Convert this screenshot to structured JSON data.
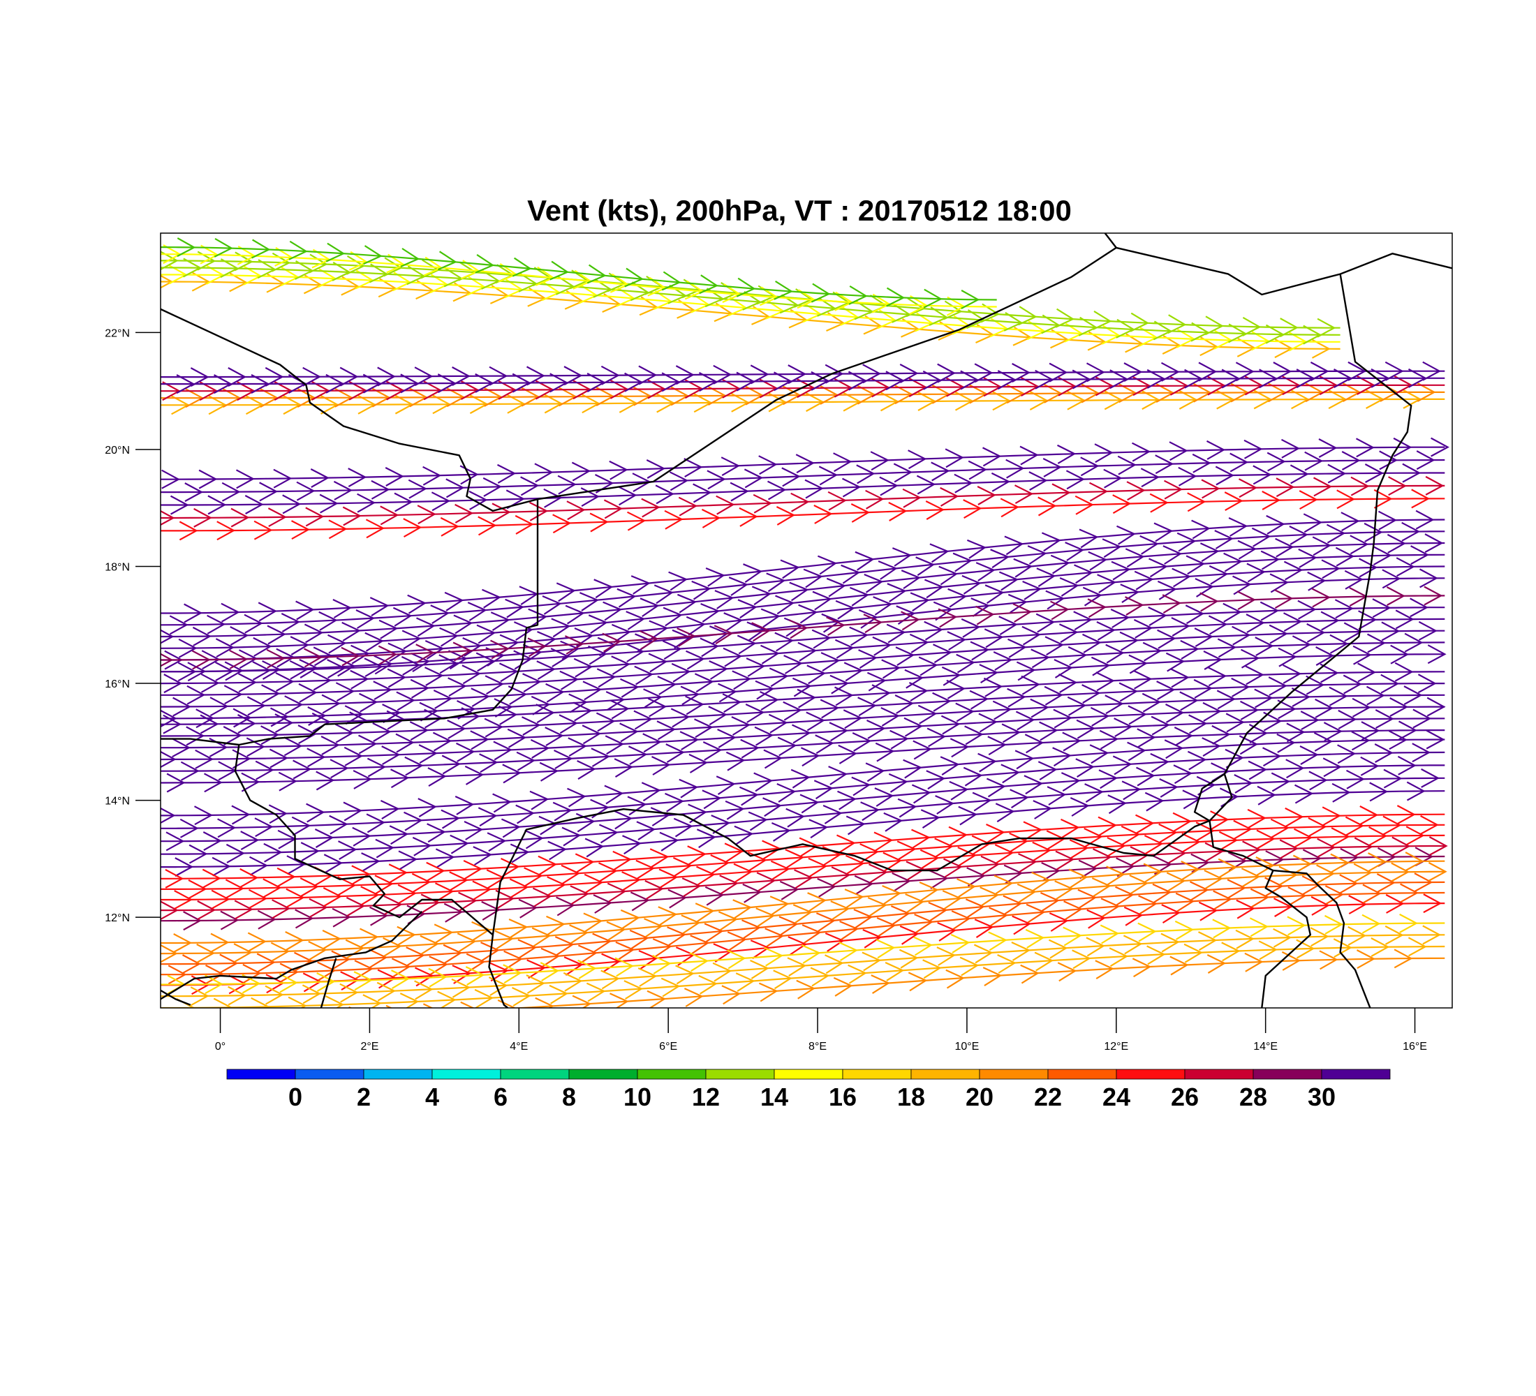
{
  "title": "Vent (kts), 200hPa, VT : 20170512  18:00",
  "map": {
    "lon_range": [
      -0.8,
      16.5
    ],
    "lat_range": [
      10.45,
      23.7
    ],
    "lon_ticks": [
      {
        "lon": 0,
        "label": "0°"
      },
      {
        "lon": 2,
        "label": "2°E"
      },
      {
        "lon": 4,
        "label": "4°E"
      },
      {
        "lon": 6,
        "label": "6°E"
      },
      {
        "lon": 8,
        "label": "8°E"
      },
      {
        "lon": 10,
        "label": "10°E"
      },
      {
        "lon": 12,
        "label": "12°E"
      },
      {
        "lon": 14,
        "label": "14°E"
      },
      {
        "lon": 16,
        "label": "16°E"
      }
    ],
    "lat_ticks": [
      {
        "lat": 22,
        "label": "22°N"
      },
      {
        "lat": 20,
        "label": "20°N"
      },
      {
        "lat": 18,
        "label": "18°N"
      },
      {
        "lat": 16,
        "label": "16°N"
      },
      {
        "lat": 14,
        "label": "14°N"
      },
      {
        "lat": 12,
        "label": "12°N"
      }
    ],
    "streamline_bands": [
      {
        "lat_start": 23.05,
        "lat_end": 21.9,
        "lon_end": 15.0,
        "count": 4,
        "spacing": 0.12,
        "speeds": [
          19,
          15,
          12,
          13
        ]
      },
      {
        "lat_start": 23.4,
        "lat_end": 22.5,
        "lon_end": 10.5,
        "count": 2,
        "spacing": 0.12,
        "speeds": [
          14,
          10
        ]
      },
      {
        "lat_start": 21.0,
        "lat_end": 21.1,
        "lon_end": 16.5,
        "count": 5,
        "spacing": 0.12,
        "speeds": [
          19,
          20,
          26,
          31,
          31
        ]
      },
      {
        "lat_start": 19.05,
        "lat_end": 19.6,
        "lon_end": 16.5,
        "count": 5,
        "spacing": 0.22,
        "speeds": [
          25,
          26,
          31,
          31,
          31
        ]
      },
      {
        "lat_start": 16.7,
        "lat_end": 18.3,
        "lon_end": 16.5,
        "count": 6,
        "spacing": 0.2,
        "speeds": [
          31,
          31,
          31,
          31,
          31,
          31
        ]
      },
      {
        "lat_start": 15.9,
        "lat_end": 17.0,
        "lon_end": 16.5,
        "count": 6,
        "spacing": 0.2,
        "speeds": [
          31,
          31,
          31,
          31,
          31,
          29
        ]
      },
      {
        "lat_start": 14.8,
        "lat_end": 15.7,
        "lon_end": 16.5,
        "count": 6,
        "spacing": 0.2,
        "speeds": [
          31,
          31,
          31,
          31,
          31,
          31
        ]
      },
      {
        "lat_start": 13.3,
        "lat_end": 14.6,
        "lon_end": 16.5,
        "count": 5,
        "spacing": 0.22,
        "speeds": [
          31,
          31,
          31,
          31,
          31
        ]
      },
      {
        "lat_start": 12.3,
        "lat_end": 13.4,
        "lon_end": 16.5,
        "count": 5,
        "spacing": 0.18,
        "speeds": [
          28,
          26,
          25,
          24,
          25
        ]
      },
      {
        "lat_start": 11.2,
        "lat_end": 12.6,
        "lon_end": 16.5,
        "count": 5,
        "spacing": 0.18,
        "speeds": [
          24,
          23,
          22,
          21,
          20
        ]
      },
      {
        "lat_start": 10.55,
        "lat_end": 11.6,
        "lon_end": 16.5,
        "count": 4,
        "spacing": 0.2,
        "speeds": [
          20,
          19,
          18,
          17
        ]
      }
    ],
    "boundaries": [
      [
        [
          -0.8,
          22.4
        ],
        [
          0.8,
          21.45
        ],
        [
          1.15,
          21.1
        ],
        [
          1.2,
          20.8
        ],
        [
          1.65,
          20.4
        ],
        [
          2.4,
          20.1
        ],
        [
          3.2,
          19.9
        ],
        [
          3.35,
          19.5
        ],
        [
          3.3,
          19.2
        ],
        [
          3.65,
          18.95
        ],
        [
          4.25,
          19.15
        ],
        [
          5.8,
          19.45
        ],
        [
          7.45,
          20.85
        ],
        [
          8.2,
          21.3
        ],
        [
          9.9,
          22.05
        ],
        [
          11.4,
          22.95
        ],
        [
          12.0,
          23.45
        ],
        [
          11.85,
          23.7
        ]
      ],
      [
        [
          12.0,
          23.45
        ],
        [
          13.5,
          23.0
        ],
        [
          13.95,
          22.65
        ],
        [
          15.0,
          23.0
        ],
        [
          15.7,
          23.35
        ],
        [
          16.5,
          23.1
        ]
      ],
      [
        [
          15.0,
          23.0
        ],
        [
          15.2,
          21.5
        ],
        [
          15.95,
          20.75
        ],
        [
          15.9,
          20.3
        ],
        [
          15.7,
          19.9
        ],
        [
          15.5,
          19.3
        ],
        [
          15.45,
          18.4
        ],
        [
          15.4,
          17.9
        ],
        [
          15.25,
          16.8
        ],
        [
          14.35,
          15.85
        ],
        [
          13.75,
          15.15
        ],
        [
          13.45,
          14.45
        ],
        [
          13.55,
          14.05
        ],
        [
          13.25,
          13.65
        ],
        [
          13.3,
          13.2
        ],
        [
          13.7,
          13.05
        ],
        [
          14.1,
          12.8
        ],
        [
          14.0,
          12.5
        ],
        [
          14.2,
          12.35
        ],
        [
          14.55,
          12.0
        ],
        [
          14.6,
          11.7
        ],
        [
          14.3,
          11.35
        ],
        [
          14.0,
          11.0
        ],
        [
          13.95,
          10.45
        ]
      ],
      [
        [
          13.45,
          14.45
        ],
        [
          13.15,
          14.2
        ],
        [
          13.05,
          13.8
        ],
        [
          13.25,
          13.65
        ]
      ],
      [
        [
          14.1,
          12.8
        ],
        [
          14.55,
          12.75
        ],
        [
          14.7,
          12.55
        ],
        [
          14.95,
          12.25
        ],
        [
          15.05,
          11.9
        ],
        [
          15.0,
          11.4
        ],
        [
          15.2,
          11.1
        ],
        [
          15.4,
          10.45
        ]
      ],
      [
        [
          4.25,
          19.15
        ],
        [
          4.25,
          17.0
        ],
        [
          4.1,
          16.95
        ],
        [
          4.05,
          16.4
        ],
        [
          3.9,
          15.9
        ],
        [
          3.65,
          15.55
        ],
        [
          3.0,
          15.4
        ],
        [
          1.4,
          15.3
        ],
        [
          1.2,
          15.1
        ],
        [
          0.65,
          15.05
        ],
        [
          0.25,
          14.95
        ],
        [
          -0.4,
          15.05
        ],
        [
          -0.8,
          15.05
        ]
      ],
      [
        [
          0.25,
          14.95
        ],
        [
          0.2,
          14.5
        ],
        [
          0.4,
          14.0
        ],
        [
          0.75,
          13.75
        ],
        [
          1.0,
          13.4
        ],
        [
          1.0,
          13.0
        ],
        [
          1.6,
          12.65
        ],
        [
          2.0,
          12.7
        ],
        [
          2.2,
          12.4
        ],
        [
          2.05,
          12.2
        ],
        [
          2.4,
          12.0
        ],
        [
          2.7,
          12.3
        ],
        [
          3.1,
          12.3
        ],
        [
          3.65,
          11.7
        ],
        [
          3.6,
          11.15
        ],
        [
          3.8,
          10.5
        ],
        [
          3.85,
          10.45
        ]
      ],
      [
        [
          3.65,
          11.7
        ],
        [
          3.75,
          12.6
        ],
        [
          4.1,
          13.5
        ],
        [
          4.8,
          13.7
        ],
        [
          5.4,
          13.85
        ],
        [
          6.2,
          13.75
        ],
        [
          6.8,
          13.35
        ],
        [
          7.1,
          13.05
        ],
        [
          7.8,
          13.25
        ],
        [
          8.5,
          13.05
        ],
        [
          9.0,
          12.8
        ],
        [
          9.6,
          12.8
        ],
        [
          10.2,
          13.25
        ],
        [
          10.7,
          13.35
        ],
        [
          11.4,
          13.35
        ],
        [
          12.1,
          13.1
        ],
        [
          12.5,
          13.05
        ],
        [
          13.05,
          13.55
        ],
        [
          13.25,
          13.65
        ]
      ],
      [
        [
          -0.8,
          10.6
        ],
        [
          -0.35,
          10.95
        ],
        [
          0.0,
          11.0
        ],
        [
          0.75,
          10.95
        ],
        [
          0.95,
          11.1
        ],
        [
          1.4,
          11.3
        ],
        [
          1.95,
          11.4
        ],
        [
          2.3,
          11.6
        ],
        [
          2.7,
          12.1
        ]
      ],
      [
        [
          -0.8,
          10.75
        ],
        [
          -0.6,
          10.6
        ],
        [
          -0.4,
          10.5
        ]
      ],
      [
        [
          1.35,
          10.45
        ],
        [
          1.45,
          10.9
        ],
        [
          1.55,
          11.3
        ]
      ]
    ]
  },
  "colorbar": {
    "colors": [
      "#0000f5",
      "#0a5cf0",
      "#00b4f0",
      "#00f0dc",
      "#00d47e",
      "#00ae2d",
      "#44c203",
      "#9bdc00",
      "#ffff00",
      "#ffd700",
      "#ffb400",
      "#ff8a00",
      "#ff5a00",
      "#ff0f10",
      "#cb0031",
      "#87005a",
      "#4f0094"
    ],
    "labels": [
      "0",
      "2",
      "4",
      "6",
      "8",
      "10",
      "12",
      "14",
      "16",
      "18",
      "20",
      "22",
      "24",
      "26",
      "28",
      "30"
    ]
  }
}
